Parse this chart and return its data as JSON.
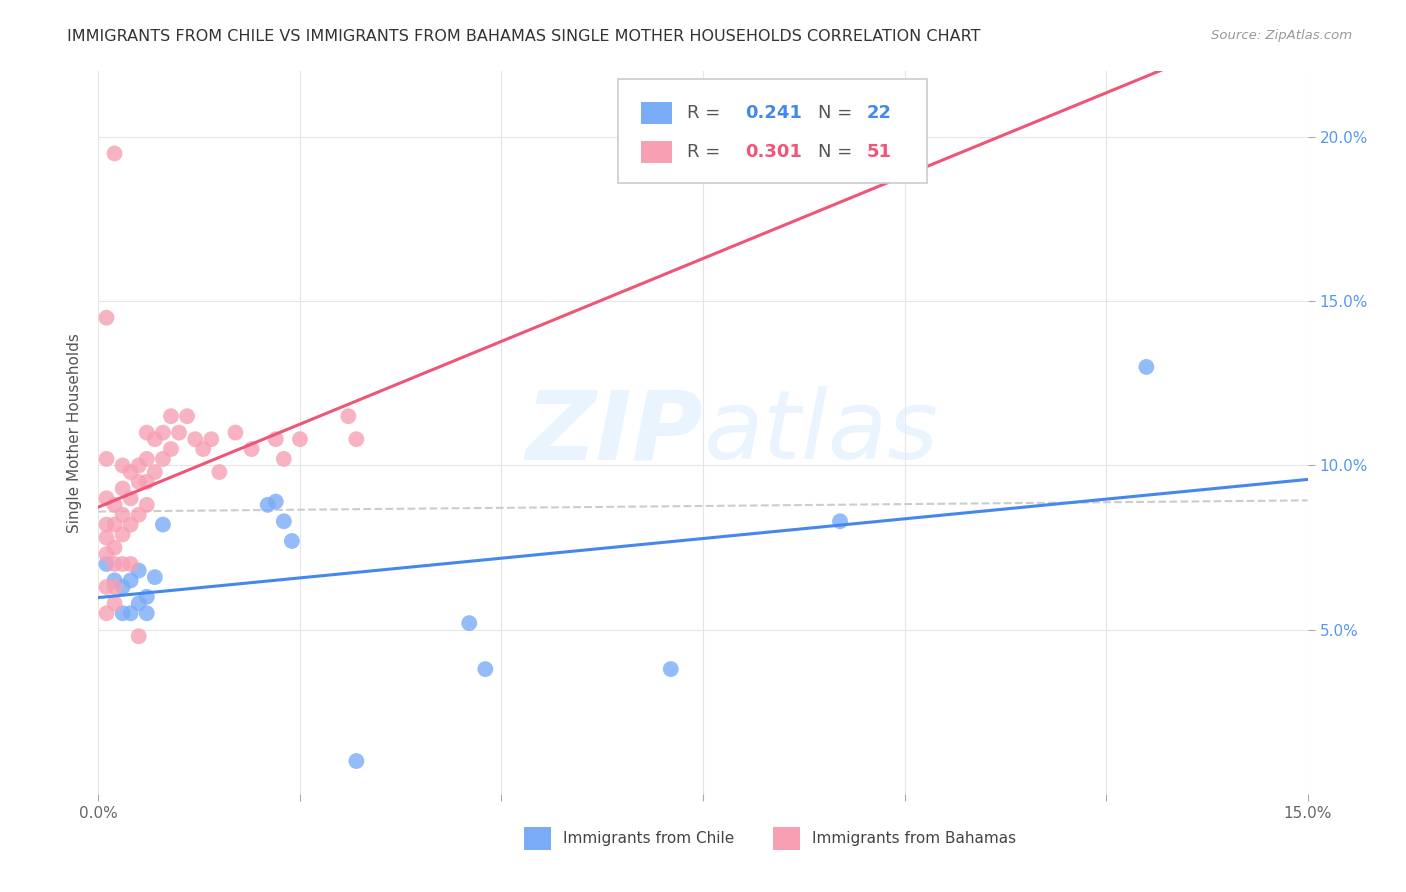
{
  "title": "IMMIGRANTS FROM CHILE VS IMMIGRANTS FROM BAHAMAS SINGLE MOTHER HOUSEHOLDS CORRELATION CHART",
  "source": "Source: ZipAtlas.com",
  "ylabel": "Single Mother Households",
  "xlim": [
    0.0,
    0.15
  ],
  "ylim": [
    0.0,
    0.22
  ],
  "chile_color": "#7aabf7",
  "bahamas_color": "#f7a0b4",
  "chile_line_color": "#4488ee",
  "bahamas_line_color": "#ee5577",
  "dash_line_color": "#cccccc",
  "watermark_color": "#ddeeff",
  "legend_chile_R": "0.241",
  "legend_chile_N": "22",
  "legend_bahamas_R": "0.301",
  "legend_bahamas_N": "51",
  "chile_x": [
    0.001,
    0.002,
    0.003,
    0.004,
    0.005,
    0.006,
    0.007,
    0.008,
    0.021,
    0.022,
    0.023,
    0.024,
    0.046,
    0.048,
    0.071,
    0.092,
    0.13,
    0.003,
    0.004,
    0.005,
    0.006,
    0.032
  ],
  "chile_y": [
    0.07,
    0.065,
    0.063,
    0.065,
    0.068,
    0.06,
    0.066,
    0.082,
    0.088,
    0.089,
    0.083,
    0.077,
    0.052,
    0.038,
    0.038,
    0.083,
    0.13,
    0.055,
    0.055,
    0.058,
    0.055,
    0.01
  ],
  "bahamas_x": [
    0.001,
    0.001,
    0.001,
    0.001,
    0.001,
    0.001,
    0.001,
    0.002,
    0.002,
    0.002,
    0.002,
    0.002,
    0.002,
    0.003,
    0.003,
    0.003,
    0.003,
    0.003,
    0.004,
    0.004,
    0.004,
    0.004,
    0.005,
    0.005,
    0.005,
    0.005,
    0.006,
    0.006,
    0.006,
    0.006,
    0.007,
    0.007,
    0.008,
    0.008,
    0.009,
    0.009,
    0.01,
    0.011,
    0.012,
    0.013,
    0.014,
    0.015,
    0.017,
    0.019,
    0.022,
    0.023,
    0.025,
    0.031,
    0.032,
    0.002,
    0.001
  ],
  "bahamas_y": [
    0.09,
    0.082,
    0.078,
    0.073,
    0.063,
    0.055,
    0.102,
    0.088,
    0.082,
    0.075,
    0.07,
    0.063,
    0.058,
    0.1,
    0.093,
    0.085,
    0.079,
    0.07,
    0.098,
    0.09,
    0.082,
    0.07,
    0.1,
    0.095,
    0.085,
    0.048,
    0.11,
    0.102,
    0.095,
    0.088,
    0.108,
    0.098,
    0.11,
    0.102,
    0.115,
    0.105,
    0.11,
    0.115,
    0.108,
    0.105,
    0.108,
    0.098,
    0.11,
    0.105,
    0.108,
    0.102,
    0.108,
    0.115,
    0.108,
    0.195,
    0.145
  ]
}
